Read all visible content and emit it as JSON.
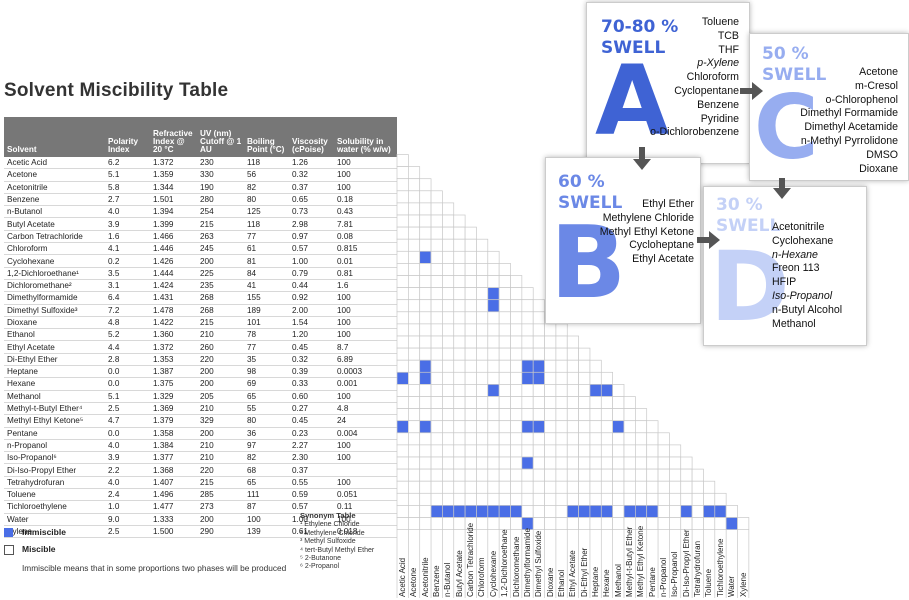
{
  "title": "Solvent Miscibility Table",
  "headers": [
    "Solvent",
    "Polarity Index",
    "Refractive Index @ 20 °C",
    "UV (nm) Cutoff @ 1 AU",
    "Boiling Point (°C)",
    "Viscosity (cPoise)",
    "Solubility in water (% w/w)"
  ],
  "rows": [
    [
      "Acetic Acid",
      "6.2",
      "1.372",
      "230",
      "118",
      "1.26",
      "100"
    ],
    [
      "Acetone",
      "5.1",
      "1.359",
      "330",
      "56",
      "0.32",
      "100"
    ],
    [
      "Acetonitrile",
      "5.8",
      "1.344",
      "190",
      "82",
      "0.37",
      "100"
    ],
    [
      "Benzene",
      "2.7",
      "1.501",
      "280",
      "80",
      "0.65",
      "0.18"
    ],
    [
      "n-Butanol",
      "4.0",
      "1.394",
      "254",
      "125",
      "0.73",
      "0.43"
    ],
    [
      "Butyl Acetate",
      "3.9",
      "1.399",
      "215",
      "118",
      "2.98",
      "7.81"
    ],
    [
      "Carbon Tetrachloride",
      "1.6",
      "1.466",
      "263",
      "77",
      "0.97",
      "0.08"
    ],
    [
      "Chloroform",
      "4.1",
      "1.446",
      "245",
      "61",
      "0.57",
      "0.815"
    ],
    [
      "Cyclohexane",
      "0.2",
      "1.426",
      "200",
      "81",
      "1.00",
      "0.01"
    ],
    [
      "1,2-Dichloroethane¹",
      "3.5",
      "1.444",
      "225",
      "84",
      "0.79",
      "0.81"
    ],
    [
      "Dichloromethane²",
      "3.1",
      "1.424",
      "235",
      "41",
      "0.44",
      "1.6"
    ],
    [
      "Dimethylformamide",
      "6.4",
      "1.431",
      "268",
      "155",
      "0.92",
      "100"
    ],
    [
      "Dimethyl Sulfoxide³",
      "7.2",
      "1.478",
      "268",
      "189",
      "2.00",
      "100"
    ],
    [
      "Dioxane",
      "4.8",
      "1.422",
      "215",
      "101",
      "1.54",
      "100"
    ],
    [
      "Ethanol",
      "5.2",
      "1.360",
      "210",
      "78",
      "1.20",
      "100"
    ],
    [
      "Ethyl Acetate",
      "4.4",
      "1.372",
      "260",
      "77",
      "0.45",
      "8.7"
    ],
    [
      "Di-Ethyl Ether",
      "2.8",
      "1.353",
      "220",
      "35",
      "0.32",
      "6.89"
    ],
    [
      "Heptane",
      "0.0",
      "1.387",
      "200",
      "98",
      "0.39",
      "0.0003"
    ],
    [
      "Hexane",
      "0.0",
      "1.375",
      "200",
      "69",
      "0.33",
      "0.001"
    ],
    [
      "Methanol",
      "5.1",
      "1.329",
      "205",
      "65",
      "0.60",
      "100"
    ],
    [
      "Methyl-t-Butyl Ether⁴",
      "2.5",
      "1.369",
      "210",
      "55",
      "0.27",
      "4.8"
    ],
    [
      "Methyl Ethyl Ketone⁵",
      "4.7",
      "1.379",
      "329",
      "80",
      "0.45",
      "24"
    ],
    [
      "Pentane",
      "0.0",
      "1.358",
      "200",
      "36",
      "0.23",
      "0.004"
    ],
    [
      "n-Propanol",
      "4.0",
      "1.384",
      "210",
      "97",
      "2.27",
      "100"
    ],
    [
      "Iso-Propanol⁶",
      "3.9",
      "1.377",
      "210",
      "82",
      "2.30",
      "100"
    ],
    [
      "Di-Iso-Propyl Ether",
      "2.2",
      "1.368",
      "220",
      "68",
      "0.37",
      ""
    ],
    [
      "Tetrahydrofuran",
      "4.0",
      "1.407",
      "215",
      "65",
      "0.55",
      "100"
    ],
    [
      "Toluene",
      "2.4",
      "1.496",
      "285",
      "111",
      "0.59",
      "0.051"
    ],
    [
      "Tichloroethylene",
      "1.0",
      "1.477",
      "273",
      "87",
      "0.57",
      "0.11"
    ],
    [
      "Water",
      "9.0",
      "1.333",
      "200",
      "100",
      "1.00",
      "100"
    ],
    [
      "Xylene",
      "2.5",
      "1.500",
      "290",
      "139",
      "0.61",
      "0.018"
    ]
  ],
  "columns": [
    "Acetic Acid",
    "Acetone",
    "Acetonitrile",
    "Benzene",
    "n-Butanol",
    "Butyl Acetate",
    "Carbon Tetrachloride",
    "Chloroform",
    "Cyclohexane",
    "1,2-Dichloroethane",
    "Dichloromethane",
    "Dimethylformamide",
    "Dimethyl Sulfoxide",
    "Dioxane",
    "Ethanol",
    "Ethyl Acetate",
    "Di-Ethyl Ether",
    "Heptane",
    "Hexane",
    "Methanol",
    "Methyl-t-Butyl Ether",
    "Methyl Ethyl Ketone",
    "Pentane",
    "n-Propanol",
    "Iso-Propanol",
    "Di-Iso-Propyl Ether",
    "Tetrahydrofuran",
    "Toluene",
    "Tichloroethylene",
    "Water",
    "Xylene"
  ],
  "immiscible_pairs": [
    [
      "Cyclohexane",
      "Acetonitrile"
    ],
    [
      "Dimethylformamide",
      "Cyclohexane"
    ],
    [
      "Dimethyl Sulfoxide",
      "Cyclohexane"
    ],
    [
      "Heptane",
      "Acetonitrile"
    ],
    [
      "Heptane",
      "Dimethylformamide"
    ],
    [
      "Heptane",
      "Dimethyl Sulfoxide"
    ],
    [
      "Hexane",
      "Acetic Acid"
    ],
    [
      "Hexane",
      "Acetonitrile"
    ],
    [
      "Hexane",
      "Dimethylformamide"
    ],
    [
      "Hexane",
      "Dimethyl Sulfoxide"
    ],
    [
      "Methanol",
      "Cyclohexane"
    ],
    [
      "Methanol",
      "Heptane"
    ],
    [
      "Methanol",
      "Hexane"
    ],
    [
      "Pentane",
      "Acetic Acid"
    ],
    [
      "Pentane",
      "Acetonitrile"
    ],
    [
      "Pentane",
      "Dimethylformamide"
    ],
    [
      "Pentane",
      "Dimethyl Sulfoxide"
    ],
    [
      "Pentane",
      "Methanol"
    ],
    [
      "Di-Iso-Propyl Ether",
      "Dimethylformamide"
    ],
    [
      "Water",
      "Benzene"
    ],
    [
      "Water",
      "n-Butanol"
    ],
    [
      "Water",
      "Butyl Acetate"
    ],
    [
      "Water",
      "Carbon Tetrachloride"
    ],
    [
      "Water",
      "Chloroform"
    ],
    [
      "Water",
      "Cyclohexane"
    ],
    [
      "Water",
      "1,2-Dichloroethane"
    ],
    [
      "Water",
      "Dichloromethane"
    ],
    [
      "Water",
      "Ethyl Acetate"
    ],
    [
      "Water",
      "Di-Ethyl Ether"
    ],
    [
      "Water",
      "Heptane"
    ],
    [
      "Water",
      "Hexane"
    ],
    [
      "Water",
      "Methyl-t-Butyl Ether"
    ],
    [
      "Water",
      "Methyl Ethyl Ketone"
    ],
    [
      "Water",
      "Pentane"
    ],
    [
      "Water",
      "Di-Iso-Propyl Ether"
    ],
    [
      "Water",
      "Toluene"
    ],
    [
      "Water",
      "Tichloroethylene"
    ],
    [
      "Xylene",
      "Dimethylformamide"
    ],
    [
      "Xylene",
      "Water"
    ]
  ],
  "legend": {
    "immiscible": "Immiscible",
    "miscible": "Miscible",
    "note": "Immiscible means that in some proportions two phases will be produced"
  },
  "synonyms": {
    "title": "Synonym Table",
    "items": [
      "¹ Ethylene Chloride",
      "² Methylene Chloride",
      "³ Methyl Sulfoxide",
      "⁴ tert-Butyl Methyl Ether",
      "⁵ 2-Butanone",
      "⁶ 2-Propanol"
    ]
  },
  "swell": {
    "A": {
      "pct": "70-80 %",
      "label": "SWELL",
      "letter": "A",
      "solvents": [
        "Toluene",
        "TCB",
        "THF",
        "p-Xylene",
        "Chloroform",
        "Cyclopentane",
        "Benzene",
        "Pyridine",
        "o-Dichlorobenzene"
      ]
    },
    "C": {
      "pct": "50 %",
      "label": "SWELL",
      "letter": "C",
      "solvents": [
        "Acetone",
        "m-Cresol",
        "o-Chlorophenol",
        "Dimethyl Formamide",
        "Dimethyl Acetamide",
        "n-Methyl Pyrrolidone",
        "DMSO",
        "Dioxane"
      ]
    },
    "B": {
      "pct": "60 %",
      "label": "SWELL",
      "letter": "B",
      "solvents": [
        "Ethyl Ether",
        "Methylene Chloride",
        "Methyl Ethyl Ketone",
        "Cycloheptane",
        "Ethyl Acetate"
      ]
    },
    "D": {
      "pct": "30 %",
      "label": "SWELL",
      "letter": "D",
      "solvents": [
        "Acetonitrile",
        "Cyclohexane",
        "n-Hexane",
        "Freon 113",
        "HFIP",
        "Iso-Propanol",
        "n-Butyl Alcohol",
        "Methanol"
      ]
    }
  },
  "colors": {
    "immiscible": "#4a6ee6",
    "header": "#777777",
    "A": "#3f63d4",
    "B": "#6b88e6",
    "C": "#97adf0",
    "D": "#c4d1f7",
    "arrow": "#555555"
  }
}
